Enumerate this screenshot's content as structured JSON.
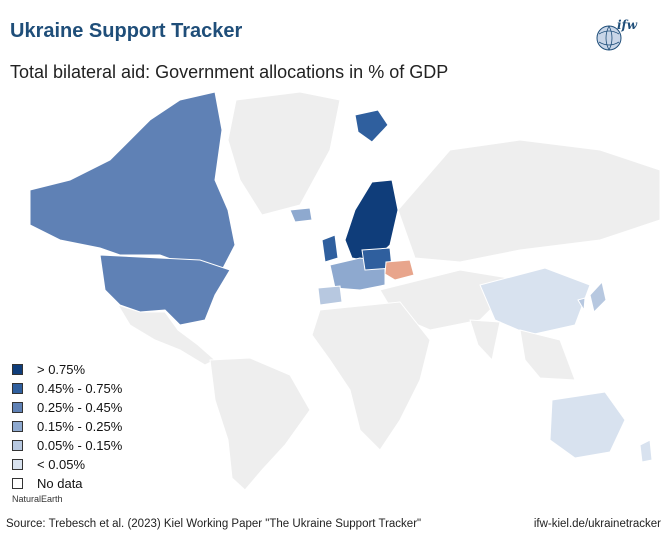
{
  "header": {
    "title": "Ukraine Support Tracker",
    "subtitle": "Total bilateral aid: Government allocations in % of GDP",
    "logo_text": "ifw"
  },
  "colors": {
    "gt075": "#0f3d7a",
    "c045_075": "#2f5f9e",
    "c025_045": "#5f81b5",
    "c015_025": "#8ea9cf",
    "c005_015": "#b7c8e0",
    "lt005": "#d8e2ef",
    "nodata": "#eeeeee",
    "ukraine": "#e8a58c"
  },
  "legend": {
    "items": [
      {
        "label": "> 0.75%",
        "color": "#0f3d7a"
      },
      {
        "label": "0.45% - 0.75%",
        "color": "#2f5f9e"
      },
      {
        "label": "0.25% - 0.45%",
        "color": "#5f81b5"
      },
      {
        "label": "0.15% - 0.25%",
        "color": "#8ea9cf"
      },
      {
        "label": "0.05% - 0.15%",
        "color": "#b7c8e0"
      },
      {
        "label": "< 0.05%",
        "color": "#d8e2ef"
      },
      {
        "label": "No data",
        "color": "#ffffff"
      }
    ]
  },
  "footer": {
    "credit": "NaturalEarth",
    "source": "Source: Trebesch et al. (2023) Kiel Working Paper \"The Ukraine Support Tracker\"",
    "url": "ifw-kiel.de/ukrainetracker"
  }
}
